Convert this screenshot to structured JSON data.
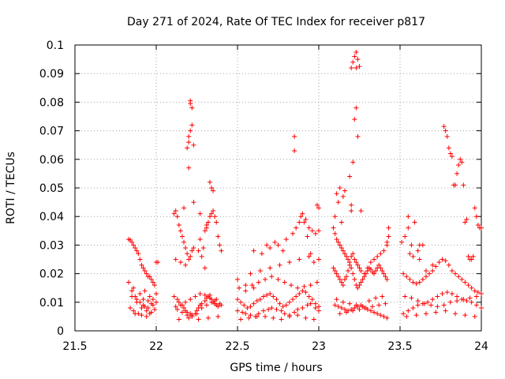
{
  "chart_data": {
    "type": "scatter",
    "title": "Day 271 of 2024, Rate Of TEC Index for receiver p817",
    "xlabel": "GPS time / hours",
    "ylabel": "ROTI / TECUs",
    "xlim": [
      21.5,
      24
    ],
    "ylim": [
      0,
      0.1
    ],
    "xticks": [
      21.5,
      22,
      22.5,
      23,
      23.5,
      24
    ],
    "xtick_labels": [
      "21.5",
      "22",
      "22.5",
      "23",
      "23.5",
      "24"
    ],
    "yticks": [
      0,
      0.01,
      0.02,
      0.03,
      0.04,
      0.05,
      0.06,
      0.07,
      0.08,
      0.09,
      0.1
    ],
    "ytick_labels": [
      "0",
      "0.01",
      "0.02",
      "0.03",
      "0.04",
      "0.05",
      "0.06",
      "0.07",
      "0.08",
      "0.09",
      "0.1"
    ],
    "grid": true,
    "marker": "+",
    "series_color": "#ff0000",
    "series": [
      {
        "name": "ROTI",
        "x": [
          21.83,
          21.84,
          21.85,
          21.86,
          21.87,
          21.88,
          21.89,
          21.9,
          21.91,
          21.92,
          21.93,
          21.94,
          21.95,
          21.96,
          21.97,
          21.98,
          21.99,
          22.0,
          22.01,
          21.83,
          21.85,
          21.87,
          21.88,
          21.9,
          21.92,
          21.93,
          21.95,
          21.97,
          21.98,
          22.0,
          21.84,
          21.86,
          21.89,
          21.91,
          21.94,
          21.96,
          21.99,
          21.85,
          21.88,
          21.92,
          21.95,
          21.98,
          21.87,
          21.91,
          21.94,
          21.97,
          21.9,
          21.96,
          21.86,
          21.93,
          22.0,
          22.11,
          22.12,
          22.13,
          22.14,
          22.15,
          22.16,
          22.17,
          22.18,
          22.19,
          22.2,
          22.21,
          22.22,
          22.23,
          22.2,
          22.21,
          22.22,
          22.22,
          22.21,
          22.21,
          22.2,
          22.19,
          22.2,
          22.23,
          22.11,
          22.13,
          22.14,
          22.16,
          22.17,
          22.18,
          22.19,
          22.21,
          22.22,
          22.24,
          22.25,
          22.26,
          22.27,
          22.28,
          22.3,
          22.31,
          22.32,
          22.33,
          22.34,
          22.35,
          22.36,
          22.37,
          22.38,
          22.4,
          22.13,
          22.16,
          22.19,
          22.22,
          22.25,
          22.28,
          22.31,
          22.34,
          22.37,
          22.12,
          22.15,
          22.18,
          22.21,
          22.24,
          22.27,
          22.3,
          22.33,
          22.36,
          22.39,
          22.14,
          22.2,
          22.26,
          22.32,
          22.38,
          22.12,
          22.15,
          22.18,
          22.26,
          22.27,
          22.29,
          22.3,
          22.31,
          22.32,
          22.33,
          22.34,
          22.35,
          22.36,
          22.37,
          22.38,
          22.39,
          22.4,
          22.33,
          22.34,
          22.35,
          22.28,
          22.3,
          22.23,
          22.27,
          22.31,
          22.17,
          22.5,
          22.52,
          22.54,
          22.56,
          22.58,
          22.6,
          22.62,
          22.64,
          22.66,
          22.68,
          22.7,
          22.72,
          22.74,
          22.76,
          22.78,
          22.8,
          22.82,
          22.84,
          22.86,
          22.88,
          22.9,
          22.92,
          22.94,
          22.96,
          22.98,
          23.0,
          22.5,
          22.53,
          22.55,
          22.58,
          22.61,
          22.63,
          22.66,
          22.69,
          22.71,
          22.74,
          22.77,
          22.79,
          22.82,
          22.85,
          22.87,
          22.9,
          22.93,
          22.95,
          22.98,
          23.0,
          22.51,
          22.55,
          22.59,
          22.63,
          22.67,
          22.71,
          22.75,
          22.79,
          22.83,
          22.87,
          22.91,
          22.95,
          22.99,
          22.52,
          22.57,
          22.62,
          22.67,
          22.72,
          22.77,
          22.82,
          22.87,
          22.92,
          22.97,
          22.58,
          22.64,
          22.7,
          22.76,
          22.82,
          22.88,
          22.94,
          23.0,
          22.6,
          22.65,
          22.7,
          22.75,
          22.8,
          22.84,
          22.86,
          22.88,
          22.89,
          22.9,
          22.92,
          22.94,
          22.96,
          22.98,
          23.0,
          22.99,
          22.91,
          22.93,
          22.95,
          22.97,
          22.5,
          22.55,
          22.6,
          22.68,
          22.73,
          22.78,
          22.85,
          22.85,
          23.0,
          23.09,
          23.1,
          23.11,
          23.12,
          23.13,
          23.14,
          23.15,
          23.16,
          23.17,
          23.18,
          23.19,
          23.2,
          23.21,
          23.22,
          23.23,
          23.24,
          23.25,
          23.26,
          23.27,
          23.28,
          23.29,
          23.3,
          23.31,
          23.32,
          23.33,
          23.34,
          23.35,
          23.36,
          23.37,
          23.38,
          23.39,
          23.4,
          23.41,
          23.42,
          23.1,
          23.12,
          23.14,
          23.16,
          23.18,
          23.2,
          23.22,
          23.24,
          23.26,
          23.28,
          23.3,
          23.32,
          23.34,
          23.36,
          23.38,
          23.4,
          23.42,
          23.11,
          23.15,
          23.19,
          23.23,
          23.27,
          23.31,
          23.35,
          23.39,
          23.13,
          23.17,
          23.21,
          23.25,
          23.29,
          23.33,
          23.37,
          23.41,
          23.09,
          23.1,
          23.11,
          23.12,
          23.13,
          23.14,
          23.15,
          23.16,
          23.17,
          23.18,
          23.19,
          23.2,
          23.21,
          23.22,
          23.23,
          23.24,
          23.25,
          23.26,
          23.28,
          23.3,
          23.32,
          23.34,
          23.36,
          23.38,
          23.4,
          23.42,
          23.43,
          23.2,
          23.21,
          23.22,
          23.23,
          23.22,
          23.21,
          23.23,
          23.24,
          23.19,
          23.2,
          23.23,
          23.24,
          23.25,
          23.2,
          23.26,
          23.13,
          23.12,
          23.15,
          23.1,
          23.14,
          23.43,
          23.42,
          23.11,
          23.16,
          23.52,
          23.54,
          23.56,
          23.58,
          23.6,
          23.62,
          23.64,
          23.66,
          23.68,
          23.7,
          23.72,
          23.74,
          23.76,
          23.78,
          23.8,
          23.82,
          23.84,
          23.86,
          23.88,
          23.9,
          23.92,
          23.94,
          23.96,
          23.98,
          24.0,
          23.52,
          23.55,
          23.58,
          23.61,
          23.64,
          23.67,
          23.7,
          23.73,
          23.76,
          23.79,
          23.82,
          23.85,
          23.88,
          23.91,
          23.94,
          23.97,
          24.0,
          23.53,
          23.57,
          23.61,
          23.65,
          23.69,
          23.73,
          23.77,
          23.81,
          23.85,
          23.89,
          23.93,
          23.97,
          23.54,
          23.6,
          23.66,
          23.72,
          23.78,
          23.84,
          23.9,
          23.96,
          23.51,
          23.53,
          23.55,
          23.57,
          23.59,
          23.61,
          23.62,
          23.64,
          23.77,
          23.78,
          23.79,
          23.8,
          23.81,
          23.82,
          23.83,
          23.84,
          23.85,
          23.86,
          23.87,
          23.88,
          23.89,
          23.9,
          23.91,
          23.92,
          23.93,
          23.94,
          23.95,
          23.96,
          23.97,
          23.98,
          23.99,
          24.0,
          23.55,
          23.56,
          23.58,
          23.62,
          23.66,
          23.7
        ],
        "y": [
          0.032,
          0.0318,
          0.031,
          0.03,
          0.029,
          0.028,
          0.027,
          0.025,
          0.023,
          0.022,
          0.021,
          0.02,
          0.019,
          0.019,
          0.018,
          0.017,
          0.016,
          0.024,
          0.024,
          0.017,
          0.014,
          0.012,
          0.011,
          0.01,
          0.009,
          0.0085,
          0.008,
          0.0095,
          0.011,
          0.013,
          0.008,
          0.007,
          0.006,
          0.0055,
          0.005,
          0.006,
          0.0075,
          0.012,
          0.01,
          0.011,
          0.0105,
          0.009,
          0.006,
          0.008,
          0.007,
          0.0065,
          0.013,
          0.012,
          0.015,
          0.014,
          0.01,
          0.041,
          0.042,
          0.04,
          0.037,
          0.035,
          0.033,
          0.031,
          0.029,
          0.027,
          0.025,
          0.026,
          0.028,
          0.029,
          0.068,
          0.07,
          0.072,
          0.078,
          0.0795,
          0.0805,
          0.066,
          0.064,
          0.057,
          0.065,
          0.012,
          0.011,
          0.01,
          0.009,
          0.008,
          0.007,
          0.0065,
          0.006,
          0.0055,
          0.006,
          0.007,
          0.008,
          0.009,
          0.0095,
          0.0105,
          0.0115,
          0.012,
          0.0125,
          0.011,
          0.01,
          0.0095,
          0.009,
          0.0085,
          0.009,
          0.0075,
          0.0065,
          0.0055,
          0.005,
          0.006,
          0.008,
          0.009,
          0.01,
          0.011,
          0.0085,
          0.009,
          0.01,
          0.011,
          0.012,
          0.013,
          0.0125,
          0.0115,
          0.0105,
          0.0095,
          0.004,
          0.0045,
          0.004,
          0.0045,
          0.005,
          0.025,
          0.024,
          0.023,
          0.028,
          0.032,
          0.029,
          0.035,
          0.037,
          0.038,
          0.04,
          0.041,
          0.042,
          0.04,
          0.038,
          0.033,
          0.03,
          0.028,
          0.052,
          0.05,
          0.049,
          0.026,
          0.022,
          0.045,
          0.041,
          0.036,
          0.043,
          0.011,
          0.01,
          0.009,
          0.008,
          0.0085,
          0.0095,
          0.0105,
          0.011,
          0.012,
          0.0125,
          0.013,
          0.012,
          0.011,
          0.0095,
          0.0085,
          0.009,
          0.01,
          0.011,
          0.012,
          0.013,
          0.014,
          0.0135,
          0.012,
          0.011,
          0.0095,
          0.0085,
          0.007,
          0.0065,
          0.006,
          0.0055,
          0.005,
          0.006,
          0.007,
          0.0075,
          0.008,
          0.0075,
          0.007,
          0.006,
          0.0055,
          0.0065,
          0.0075,
          0.008,
          0.009,
          0.0095,
          0.008,
          0.007,
          0.015,
          0.014,
          0.016,
          0.017,
          0.018,
          0.019,
          0.018,
          0.017,
          0.016,
          0.015,
          0.0155,
          0.016,
          0.017,
          0.004,
          0.0045,
          0.005,
          0.005,
          0.0045,
          0.004,
          0.005,
          0.0055,
          0.0045,
          0.004,
          0.02,
          0.021,
          0.022,
          0.023,
          0.024,
          0.025,
          0.026,
          0.025,
          0.028,
          0.027,
          0.029,
          0.03,
          0.032,
          0.034,
          0.036,
          0.038,
          0.04,
          0.041,
          0.039,
          0.036,
          0.035,
          0.034,
          0.035,
          0.044,
          0.038,
          0.033,
          0.027,
          0.024,
          0.018,
          0.016,
          0.015,
          0.03,
          0.031,
          0.028,
          0.063,
          0.068,
          0.043,
          0.022,
          0.021,
          0.02,
          0.019,
          0.018,
          0.017,
          0.016,
          0.018,
          0.019,
          0.021,
          0.023,
          0.022,
          0.02,
          0.018,
          0.016,
          0.015,
          0.016,
          0.017,
          0.018,
          0.019,
          0.02,
          0.021,
          0.022,
          0.0215,
          0.0205,
          0.02,
          0.021,
          0.022,
          0.023,
          0.022,
          0.021,
          0.02,
          0.019,
          0.018,
          0.009,
          0.0085,
          0.008,
          0.0075,
          0.007,
          0.0075,
          0.008,
          0.0085,
          0.009,
          0.008,
          0.0075,
          0.007,
          0.0065,
          0.006,
          0.0055,
          0.005,
          0.0045,
          0.011,
          0.01,
          0.0095,
          0.009,
          0.0085,
          0.0105,
          0.0115,
          0.012,
          0.006,
          0.0065,
          0.007,
          0.0075,
          0.008,
          0.0085,
          0.009,
          0.0095,
          0.036,
          0.034,
          0.032,
          0.031,
          0.03,
          0.029,
          0.028,
          0.027,
          0.026,
          0.025,
          0.024,
          0.026,
          0.027,
          0.025,
          0.024,
          0.023,
          0.022,
          0.021,
          0.02,
          0.022,
          0.024,
          0.025,
          0.026,
          0.027,
          0.028,
          0.03,
          0.036,
          0.092,
          0.094,
          0.096,
          0.0975,
          0.074,
          0.059,
          0.078,
          0.068,
          0.054,
          0.042,
          0.092,
          0.095,
          0.0925,
          0.044,
          0.042,
          0.05,
          0.045,
          0.047,
          0.04,
          0.038,
          0.033,
          0.031,
          0.048,
          0.049,
          0.02,
          0.019,
          0.018,
          0.017,
          0.0165,
          0.017,
          0.018,
          0.019,
          0.02,
          0.021,
          0.0225,
          0.024,
          0.025,
          0.0245,
          0.023,
          0.021,
          0.02,
          0.019,
          0.018,
          0.017,
          0.016,
          0.015,
          0.014,
          0.0135,
          0.013,
          0.006,
          0.007,
          0.008,
          0.009,
          0.0095,
          0.01,
          0.011,
          0.012,
          0.013,
          0.0135,
          0.013,
          0.012,
          0.011,
          0.0105,
          0.01,
          0.009,
          0.008,
          0.012,
          0.0115,
          0.0105,
          0.0095,
          0.009,
          0.0085,
          0.009,
          0.01,
          0.0105,
          0.011,
          0.0115,
          0.012,
          0.005,
          0.0055,
          0.006,
          0.0065,
          0.007,
          0.006,
          0.0055,
          0.005,
          0.031,
          0.033,
          0.04,
          0.03,
          0.038,
          0.028,
          0.03,
          0.03,
          0.0715,
          0.07,
          0.068,
          0.064,
          0.062,
          0.061,
          0.051,
          0.051,
          0.055,
          0.058,
          0.06,
          0.059,
          0.051,
          0.038,
          0.039,
          0.026,
          0.025,
          0.025,
          0.026,
          0.043,
          0.04,
          0.037,
          0.036,
          0.036,
          0.036,
          0.027,
          0.026,
          0.025,
          0.021,
          0.023
        ]
      }
    ]
  }
}
